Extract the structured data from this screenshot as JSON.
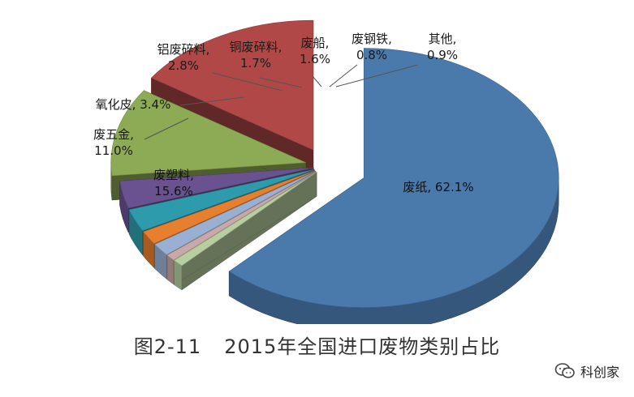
{
  "chart_data": {
    "type": "pie",
    "style": "3d-exploded",
    "slices": [
      {
        "name": "废纸",
        "value": 62.1,
        "label": "废纸, 62.1%",
        "color": "#4A79AC"
      },
      {
        "name": "其他",
        "value": 0.9,
        "label": "其他, 0.9%",
        "color": "#B7CFA0"
      },
      {
        "name": "废钢铁",
        "value": 0.8,
        "label": "废钢铁, 0.8%",
        "color": "#C9A9A7"
      },
      {
        "name": "废船",
        "value": 1.6,
        "label": "废船, 1.6%",
        "color": "#9AB0D3"
      },
      {
        "name": "铜废碎料",
        "value": 1.7,
        "label": "铜废碎料, 1.7%",
        "color": "#E67F2E"
      },
      {
        "name": "铝废碎料",
        "value": 2.8,
        "label": "铝废碎料, 2.8%",
        "color": "#2E9BAC"
      },
      {
        "name": "氧化皮",
        "value": 3.4,
        "label": "氧化皮, 3.4%",
        "color": "#6A5291"
      },
      {
        "name": "废五金",
        "value": 11.0,
        "label": "废五金, 11.0%",
        "color": "#8DAA54"
      },
      {
        "name": "废塑料",
        "value": 15.6,
        "label": "废塑料, 15.6%",
        "color": "#B04848"
      }
    ]
  },
  "caption": {
    "number": "图2-11",
    "text": "2015年全国进口废物类别占比"
  },
  "watermark": {
    "text": "科创家",
    "icon": "chat-bubble-logo-icon"
  }
}
